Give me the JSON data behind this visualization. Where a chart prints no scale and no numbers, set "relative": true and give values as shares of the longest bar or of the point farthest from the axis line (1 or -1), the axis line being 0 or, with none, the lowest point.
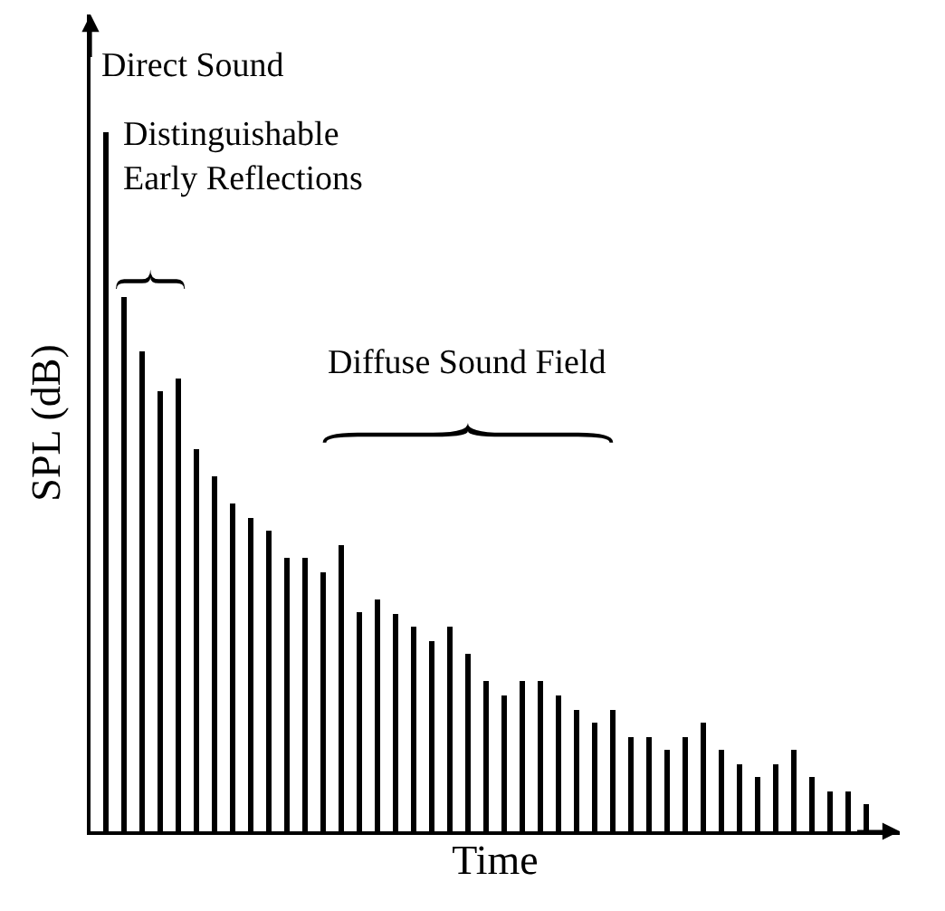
{
  "chart_data": {
    "type": "bar",
    "relative": true,
    "xlabel": "Time",
    "ylabel": "SPL (dB)",
    "color": "#000000",
    "annotations": [
      "Direct Sound",
      "Distinguishable\nEarly Reflections",
      "Diffuse Sound Field"
    ],
    "categories": [
      null,
      null,
      null,
      null,
      null,
      null,
      null,
      null,
      null,
      null,
      null,
      null,
      null,
      null,
      null,
      null,
      null,
      null,
      null,
      null,
      null,
      null,
      null,
      null,
      null,
      null,
      null,
      null,
      null,
      null,
      null,
      null,
      null,
      null,
      null,
      null,
      null,
      null,
      null,
      null,
      null,
      null,
      null
    ],
    "values": [
      1,
      0.764,
      0.687,
      0.63,
      0.648,
      0.547,
      0.508,
      0.469,
      0.448,
      0.43,
      0.391,
      0.391,
      0.37,
      0.409,
      0.313,
      0.332,
      0.311,
      0.293,
      0.272,
      0.293,
      0.254,
      0.215,
      0.194,
      0.215,
      0.215,
      0.194,
      0.174,
      0.155,
      0.174,
      0.135,
      0.135,
      0.117,
      0.135,
      0.155,
      0.117,
      0.096,
      0.078,
      0.096,
      0.117,
      0.078,
      0.057,
      0.057,
      0.039
    ]
  }
}
